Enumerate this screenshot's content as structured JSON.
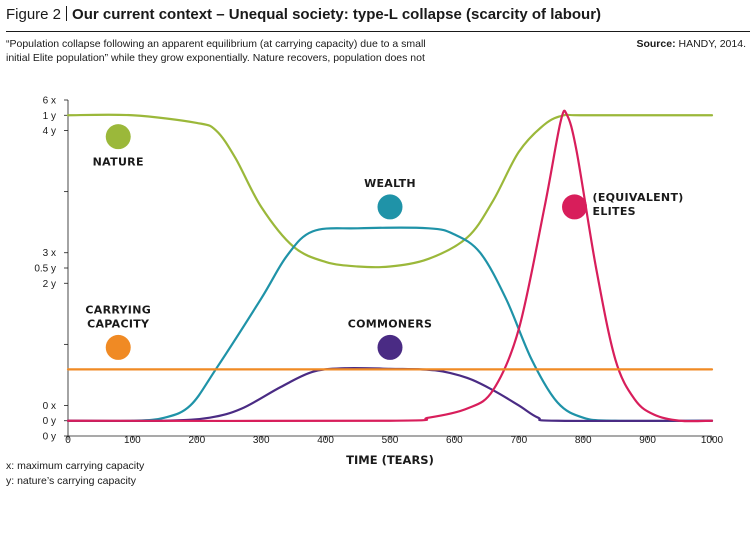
{
  "header": {
    "figure_number": "Figure 2",
    "title": "Our current context – Unequal society: type-L collapse (scarcity of labour)"
  },
  "subtitle": "“Population collapse following an apparent equilibrium (at carrying capacity) due to a small initial Elite population” while they grow exponentially. Nature recovers, population does not",
  "source": {
    "label": "Source:",
    "text": "HANDY, 2014."
  },
  "footnotes": [
    "x: maximum carrying capacity",
    "y: nature’s carrying capacity"
  ],
  "chart_data": {
    "type": "line",
    "xlabel": "TIME (TEARS)",
    "xlim": [
      0,
      1000
    ],
    "x_ticks": [
      0,
      100,
      200,
      300,
      400,
      500,
      600,
      700,
      800,
      900,
      1000
    ],
    "y_tick_labels": [
      {
        "label": "6 x",
        "value": 1.05
      },
      {
        "label": "1 y",
        "value": 1.0
      },
      {
        "label": "4 y",
        "value": 0.95
      },
      {
        "label": "3 x",
        "value": 0.55
      },
      {
        "label": "0.5 y",
        "value": 0.5
      },
      {
        "label": "2 y",
        "value": 0.45
      },
      {
        "label": "0 x",
        "value": 0.05
      },
      {
        "label": "0 y",
        "value": 0.0
      },
      {
        "label": "0 y",
        "value": -0.05
      }
    ],
    "y_minor_ticks": [
      0.75,
      0.25
    ],
    "ylim": [
      -0.05,
      1.05
    ],
    "series": [
      {
        "name": "NATURE",
        "color": "#9bb83a",
        "points": [
          [
            0,
            1.0
          ],
          [
            100,
            1.0
          ],
          [
            200,
            0.975
          ],
          [
            230,
            0.95
          ],
          [
            260,
            0.86
          ],
          [
            300,
            0.7
          ],
          [
            350,
            0.57
          ],
          [
            400,
            0.52
          ],
          [
            450,
            0.505
          ],
          [
            500,
            0.505
          ],
          [
            560,
            0.53
          ],
          [
            620,
            0.6
          ],
          [
            660,
            0.72
          ],
          [
            700,
            0.88
          ],
          [
            740,
            0.97
          ],
          [
            770,
            1.0
          ],
          [
            800,
            1.0
          ],
          [
            1000,
            1.0
          ]
        ]
      },
      {
        "name": "WEALTH",
        "color": "#1f93a8",
        "points": [
          [
            0,
            0.0
          ],
          [
            100,
            0.0
          ],
          [
            150,
            0.01
          ],
          [
            190,
            0.05
          ],
          [
            230,
            0.17
          ],
          [
            300,
            0.4
          ],
          [
            340,
            0.54
          ],
          [
            380,
            0.62
          ],
          [
            450,
            0.63
          ],
          [
            560,
            0.63
          ],
          [
            600,
            0.61
          ],
          [
            640,
            0.55
          ],
          [
            680,
            0.4
          ],
          [
            720,
            0.2
          ],
          [
            760,
            0.06
          ],
          [
            800,
            0.01
          ],
          [
            850,
            0.0
          ],
          [
            1000,
            0.0
          ]
        ]
      },
      {
        "name": "COMMONERS",
        "color": "#4a2b84",
        "points": [
          [
            0,
            0.0
          ],
          [
            150,
            0.0
          ],
          [
            220,
            0.01
          ],
          [
            270,
            0.04
          ],
          [
            330,
            0.11
          ],
          [
            380,
            0.16
          ],
          [
            430,
            0.172
          ],
          [
            500,
            0.17
          ],
          [
            570,
            0.165
          ],
          [
            620,
            0.14
          ],
          [
            660,
            0.1
          ],
          [
            700,
            0.05
          ],
          [
            730,
            0.01
          ],
          [
            760,
            0.0
          ],
          [
            1000,
            0.0
          ]
        ]
      },
      {
        "name": "(EQUIVALENT) ELITES",
        "color": "#d81e5b",
        "points": [
          [
            0,
            0.0
          ],
          [
            500,
            0.0
          ],
          [
            560,
            0.01
          ],
          [
            620,
            0.04
          ],
          [
            660,
            0.1
          ],
          [
            700,
            0.3
          ],
          [
            740,
            0.7
          ],
          [
            765,
            0.98
          ],
          [
            775,
            1.0
          ],
          [
            790,
            0.88
          ],
          [
            820,
            0.5
          ],
          [
            850,
            0.2
          ],
          [
            880,
            0.07
          ],
          [
            910,
            0.02
          ],
          [
            950,
            0.0
          ],
          [
            1000,
            0.0
          ]
        ]
      },
      {
        "name": "CARRYING CAPACITY",
        "color": "#f08a24",
        "points": [
          [
            0,
            0.168
          ],
          [
            1000,
            0.168
          ]
        ]
      }
    ],
    "labels": [
      {
        "text": "NATURE",
        "color": "#9bb83a",
        "x": 78,
        "y": 0.93
      },
      {
        "text": "WEALTH",
        "color": "#1f93a8",
        "x": 500,
        "y": 0.7
      },
      {
        "text": "(EQUIVALENT)|ELITES",
        "color": "#d81e5b",
        "x": 830,
        "y": 0.7
      },
      {
        "text": "CARRYING|CAPACITY",
        "color": "#f08a24",
        "x": 78,
        "y": 0.24
      },
      {
        "text": "COMMONERS",
        "color": "#4a2b84",
        "x": 500,
        "y": 0.24
      }
    ]
  }
}
